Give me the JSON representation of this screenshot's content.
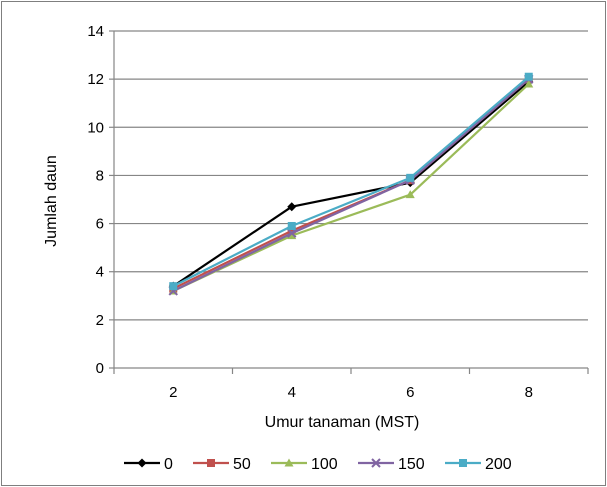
{
  "chart_data": {
    "type": "line",
    "title": "",
    "xlabel": "Umur tanaman (MST)",
    "ylabel": "Jumlah daun",
    "categories": [
      "2",
      "4",
      "6",
      "8"
    ],
    "ylim": [
      0,
      14
    ],
    "yticks": [
      0,
      2,
      4,
      6,
      8,
      10,
      12,
      14
    ],
    "grid": "horizontal",
    "legend_position": "bottom",
    "series": [
      {
        "name": "0",
        "color": "#000000",
        "marker": "diamond",
        "values": [
          3.4,
          6.7,
          7.7,
          11.9
        ]
      },
      {
        "name": "50",
        "color": "#c0504d",
        "marker": "square",
        "values": [
          3.3,
          5.7,
          7.8,
          12.0
        ]
      },
      {
        "name": "100",
        "color": "#9bbb59",
        "marker": "triangle",
        "values": [
          3.2,
          5.5,
          7.2,
          11.8
        ]
      },
      {
        "name": "150",
        "color": "#8064a2",
        "marker": "x",
        "values": [
          3.2,
          5.6,
          7.8,
          12.0
        ]
      },
      {
        "name": "200",
        "color": "#4bacc6",
        "marker": "square",
        "values": [
          3.4,
          5.9,
          7.9,
          12.1
        ]
      }
    ]
  }
}
